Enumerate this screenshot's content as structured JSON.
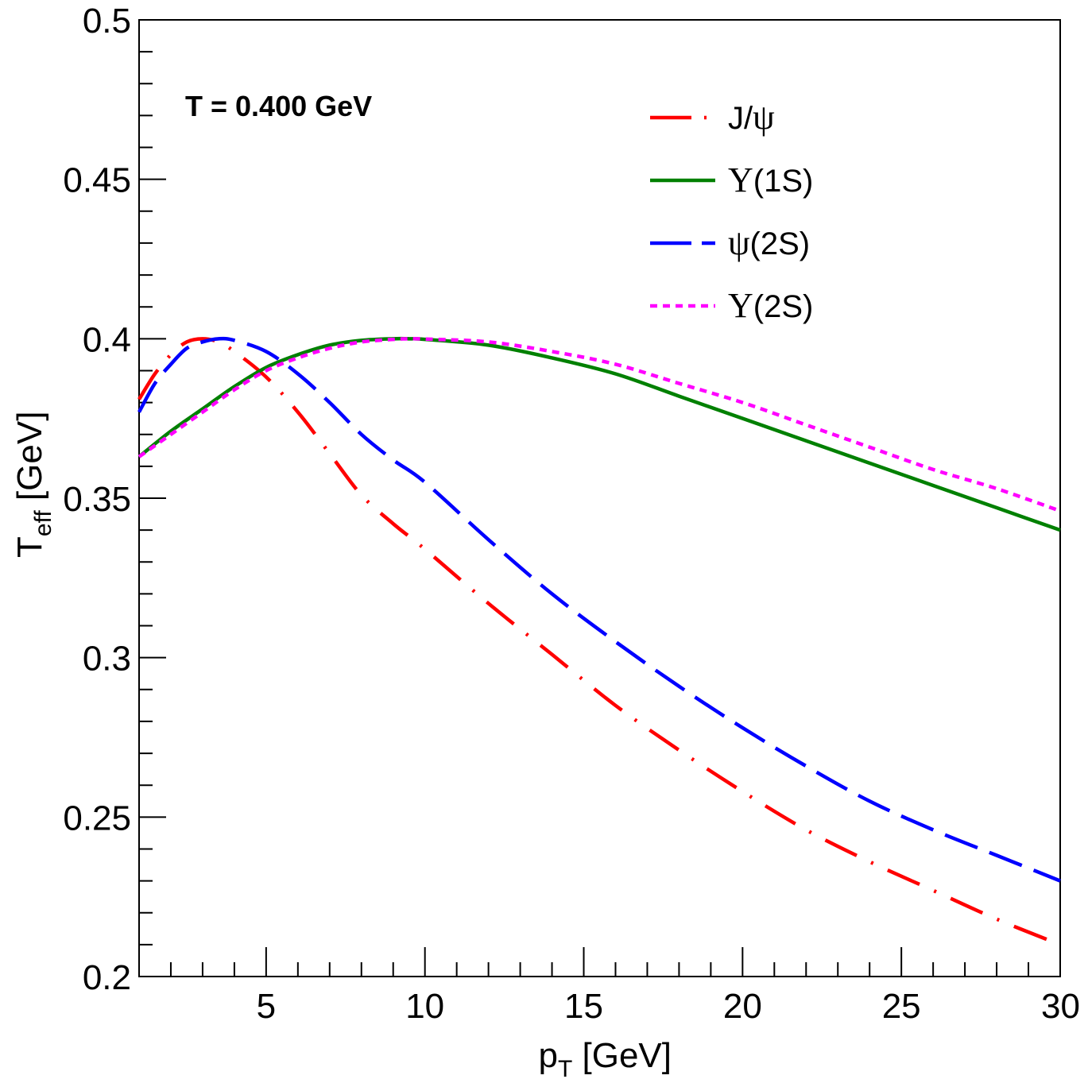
{
  "chart_data": {
    "type": "line",
    "title": "",
    "annotation": "T = 0.400 GeV",
    "xlabel": "p_T [GeV]",
    "xlabel_main": "p",
    "xlabel_sub": "T",
    "xlabel_unit": " [GeV]",
    "ylabel": "T_eff [GeV]",
    "ylabel_main": "T",
    "ylabel_sub": "eff",
    "ylabel_unit": " [GeV]",
    "xlim": [
      1,
      30
    ],
    "ylim": [
      0.2,
      0.5
    ],
    "grid": false,
    "legend_position": "top-right",
    "x_ticks": [
      5,
      10,
      15,
      20,
      25,
      30
    ],
    "x_tick_labels": [
      "5",
      "10",
      "15",
      "20",
      "25",
      "30"
    ],
    "y_ticks": [
      0.2,
      0.25,
      0.3,
      0.35,
      0.4,
      0.45,
      0.5
    ],
    "y_tick_labels": [
      "0.2",
      "0.25",
      "0.3",
      "0.35",
      "0.4",
      "0.45",
      "0.5"
    ],
    "series": [
      {
        "name": "J/ψ",
        "legend_prefix": "J/",
        "legend_greek": "ψ",
        "legend_suffix": "",
        "color": "#ff0000",
        "style": "dash-dot",
        "x": [
          1,
          1.5,
          2,
          2.5,
          3,
          3.5,
          4,
          5,
          6,
          7,
          8,
          9,
          10,
          12,
          14,
          16,
          18,
          20,
          22,
          24,
          26,
          28,
          30
        ],
        "y": [
          0.381,
          0.389,
          0.395,
          0.399,
          0.4,
          0.399,
          0.396,
          0.388,
          0.377,
          0.364,
          0.351,
          0.342,
          0.334,
          0.317,
          0.301,
          0.285,
          0.271,
          0.258,
          0.246,
          0.236,
          0.227,
          0.218,
          0.21
        ]
      },
      {
        "name": "Υ(1S)",
        "legend_prefix": "",
        "legend_greek": "Υ",
        "legend_suffix": "(1S)",
        "color": "#008000",
        "style": "solid",
        "x": [
          1,
          2,
          3,
          4,
          5,
          6,
          7,
          8,
          9,
          9.5,
          10,
          12,
          14,
          16,
          18,
          20,
          22,
          24,
          26,
          28,
          30
        ],
        "y": [
          0.363,
          0.371,
          0.378,
          0.385,
          0.391,
          0.395,
          0.398,
          0.3995,
          0.4,
          0.4,
          0.3998,
          0.398,
          0.394,
          0.389,
          0.382,
          0.375,
          0.368,
          0.361,
          0.354,
          0.347,
          0.34
        ]
      },
      {
        "name": "ψ(2S)",
        "legend_prefix": "",
        "legend_greek": "ψ",
        "legend_suffix": "(2S)",
        "color": "#0000ff",
        "style": "dashed",
        "x": [
          1,
          1.5,
          2,
          2.5,
          3,
          3.5,
          4,
          5,
          6,
          7,
          8,
          9,
          10,
          12,
          14,
          16,
          18,
          20,
          22,
          24,
          26,
          28,
          30
        ],
        "y": [
          0.377,
          0.386,
          0.392,
          0.397,
          0.399,
          0.4,
          0.3995,
          0.396,
          0.389,
          0.38,
          0.37,
          0.362,
          0.355,
          0.337,
          0.32,
          0.305,
          0.291,
          0.278,
          0.266,
          0.255,
          0.246,
          0.238,
          0.23
        ]
      },
      {
        "name": "Υ(2S)",
        "legend_prefix": "",
        "legend_greek": "Υ",
        "legend_suffix": "(2S)",
        "color": "#ff00ff",
        "style": "dotted",
        "x": [
          1,
          2,
          3,
          4,
          5,
          6,
          7,
          8,
          9,
          9.5,
          10,
          12,
          14,
          16,
          18,
          20,
          22,
          24,
          26,
          28,
          30
        ],
        "y": [
          0.363,
          0.37,
          0.377,
          0.384,
          0.39,
          0.394,
          0.397,
          0.399,
          0.3998,
          0.4,
          0.3999,
          0.399,
          0.396,
          0.392,
          0.386,
          0.38,
          0.373,
          0.366,
          0.359,
          0.353,
          0.346
        ]
      }
    ]
  }
}
